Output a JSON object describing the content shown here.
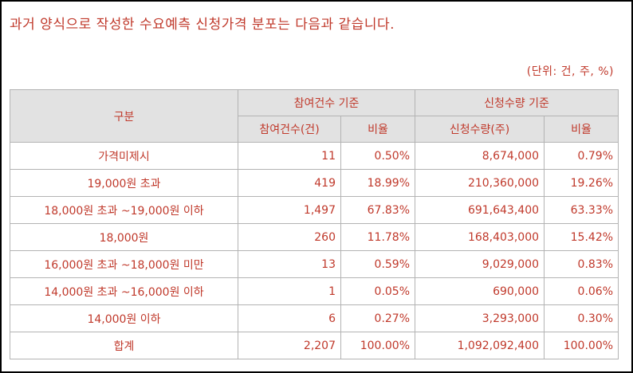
{
  "heading": "과거 양식으로 작성한 수요예측 신청가격 분포는 다음과 같습니다.",
  "unit_note": "(단위: 건, 주, %)",
  "table": {
    "header": {
      "category": "구분",
      "participants_group": "참여건수 기준",
      "quantity_group": "신청수량 기준",
      "participants_count": "참여건수(건)",
      "participants_ratio": "비율",
      "quantity_count": "신청수량(주)",
      "quantity_ratio": "비율"
    },
    "rows": [
      {
        "label": "가격미제시",
        "count": "11",
        "count_ratio": "0.50%",
        "qty": "8,674,000",
        "qty_ratio": "0.79%"
      },
      {
        "label": "19,000원 초과",
        "count": "419",
        "count_ratio": "18.99%",
        "qty": "210,360,000",
        "qty_ratio": "19.26%"
      },
      {
        "label": "18,000원 초과 ~19,000원 이하",
        "count": "1,497",
        "count_ratio": "67.83%",
        "qty": "691,643,400",
        "qty_ratio": "63.33%"
      },
      {
        "label": "18,000원",
        "count": "260",
        "count_ratio": "11.78%",
        "qty": "168,403,000",
        "qty_ratio": "15.42%"
      },
      {
        "label": "16,000원 초과 ~18,000원 미만",
        "count": "13",
        "count_ratio": "0.59%",
        "qty": "9,029,000",
        "qty_ratio": "0.83%"
      },
      {
        "label": "14,000원 초과 ~16,000원 이하",
        "count": "1",
        "count_ratio": "0.05%",
        "qty": "690,000",
        "qty_ratio": "0.06%"
      },
      {
        "label": "14,000원 이하",
        "count": "6",
        "count_ratio": "0.27%",
        "qty": "3,293,000",
        "qty_ratio": "0.30%"
      },
      {
        "label": "합계",
        "count": "2,207",
        "count_ratio": "100.00%",
        "qty": "1,092,092,400",
        "qty_ratio": "100.00%"
      }
    ]
  }
}
